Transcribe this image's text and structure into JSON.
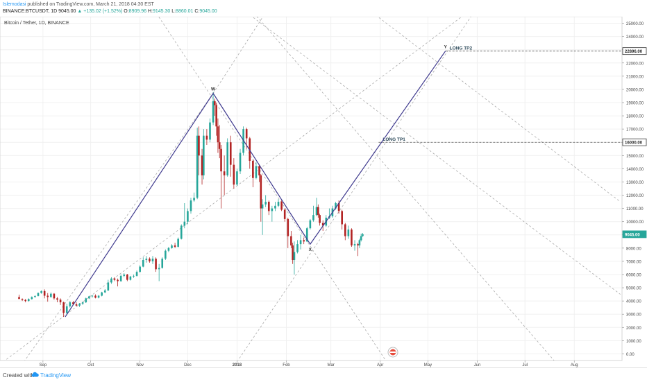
{
  "header": {
    "author": "Islemodasi",
    "published_text": " published on TradingView.com, March 21, 2018 04:30 EST",
    "symbol": "BINANCE:BTCUSDT, 1D",
    "last": "9045.00",
    "change": "▲ +135.02 (+1.52%)",
    "o_label": "O:",
    "o_value": "8909.96",
    "h_label": "H:",
    "h_value": "9145.30",
    "l_label": "L:",
    "l_value": "8860.01",
    "c_label": "C:",
    "c_value": "9045.00"
  },
  "footer": {
    "created_with": "Created with",
    "brand": "TradingView"
  },
  "colors": {
    "up": "#26a69a",
    "down": "#b22222",
    "pattern": "#3f3a8e",
    "price_tag": "#26a69a"
  },
  "chart_data": {
    "type": "candlestick",
    "title": "Bitcoin / Tether, 1D, BINANCE",
    "x_axis": {
      "range": [
        "2017-08-05",
        "2018-08-31"
      ],
      "ticks": [
        {
          "label": "Sep",
          "date": "2017-09-01"
        },
        {
          "label": "Oct",
          "date": "2017-10-01"
        },
        {
          "label": "Nov",
          "date": "2017-11-01"
        },
        {
          "label": "Dec",
          "date": "2017-12-01"
        },
        {
          "label": "2018",
          "date": "2018-01-01"
        },
        {
          "label": "Feb",
          "date": "2018-02-01"
        },
        {
          "label": "Mar",
          "date": "2018-03-01"
        },
        {
          "label": "Apr",
          "date": "2018-04-01"
        },
        {
          "label": "May",
          "date": "2018-05-01"
        },
        {
          "label": "Jun",
          "date": "2018-06-01"
        },
        {
          "label": "Jul",
          "date": "2018-07-01"
        },
        {
          "label": "Aug",
          "date": "2018-08-01"
        }
      ]
    },
    "y_axis": {
      "range": [
        -500,
        25500
      ],
      "ticks": [
        "0.00",
        "1000.00",
        "2000.00",
        "3000.00",
        "4000.00",
        "5000.00",
        "6000.00",
        "7000.00",
        "8000.00",
        "9000.00",
        "10000.00",
        "11000.00",
        "12000.00",
        "13000.00",
        "14000.00",
        "15000.00",
        "16000.00",
        "17000.00",
        "18000.00",
        "19000.00",
        "20000.00",
        "21000.00",
        "22000.00",
        "23000.00",
        "24000.00",
        "25000.00"
      ]
    },
    "price_tags": [
      {
        "label": "22896.00",
        "value": 22896,
        "style": "dark"
      },
      {
        "label": "16000.00",
        "value": 16000,
        "style": "dark"
      },
      {
        "label": "9045.00",
        "value": 9045,
        "style": "green"
      }
    ],
    "horizontal_levels": [
      {
        "label": "LONG TP2",
        "value": 22896,
        "from": "2018-05-12"
      },
      {
        "label": "LONG TP1",
        "value": 16000,
        "from": "2018-03-31"
      }
    ],
    "pattern_points": [
      {
        "label": "",
        "date": "2017-09-15",
        "value": 2800
      },
      {
        "label": "W",
        "date": "2017-12-17",
        "value": 19700
      },
      {
        "label": "X",
        "date": "2018-02-16",
        "value": 8300
      },
      {
        "label": "Y",
        "date": "2018-05-12",
        "value": 22896
      }
    ],
    "guide_lines": [
      {
        "from": {
          "date": "2017-08-07",
          "value": -600
        },
        "to": {
          "date": "2018-05-30",
          "value": 26200
        }
      },
      {
        "from": {
          "date": "2017-11-10",
          "value": 26000
        },
        "to": {
          "date": "2018-04-05",
          "value": -600
        }
      },
      {
        "from": {
          "date": "2017-08-20",
          "value": -600
        },
        "to": {
          "date": "2017-12-17",
          "value": 19700
        }
      },
      {
        "from": {
          "date": "2017-12-17",
          "value": 19700
        },
        "to": {
          "date": "2018-01-20",
          "value": 26000
        }
      },
      {
        "from": {
          "date": "2018-01-01",
          "value": -600
        },
        "to": {
          "date": "2018-06-01",
          "value": 26200
        }
      },
      {
        "from": {
          "date": "2018-01-05",
          "value": 26000
        },
        "to": {
          "date": "2018-08-30",
          "value": 4500
        }
      },
      {
        "from": {
          "date": "2018-03-25",
          "value": 26000
        },
        "to": {
          "date": "2018-08-30",
          "value": 11500
        }
      },
      {
        "from": {
          "date": "2018-01-10",
          "value": 26000
        },
        "to": {
          "date": "2018-07-20",
          "value": -600
        }
      }
    ],
    "candles": [
      [
        "2017-08-17",
        4300,
        4480,
        4200,
        4150
      ],
      [
        "2017-08-19",
        4150,
        4200,
        4000,
        4080
      ],
      [
        "2017-08-21",
        4080,
        4150,
        3900,
        4000
      ],
      [
        "2017-08-23",
        4000,
        4200,
        3950,
        4150
      ],
      [
        "2017-08-25",
        4150,
        4350,
        4100,
        4300
      ],
      [
        "2017-08-27",
        4300,
        4420,
        4250,
        4380
      ],
      [
        "2017-08-29",
        4380,
        4650,
        4350,
        4600
      ],
      [
        "2017-08-31",
        4600,
        4800,
        4550,
        4750
      ],
      [
        "2017-09-02",
        4750,
        4880,
        4200,
        4400
      ],
      [
        "2017-09-04",
        4400,
        4600,
        3950,
        4300
      ],
      [
        "2017-09-06",
        4300,
        4650,
        4250,
        4550
      ],
      [
        "2017-09-08",
        4550,
        4600,
        4100,
        4200
      ],
      [
        "2017-09-10",
        4200,
        4300,
        3900,
        4100
      ],
      [
        "2017-09-12",
        4100,
        4200,
        3700,
        3900
      ],
      [
        "2017-09-14",
        3900,
        3950,
        2800,
        3100
      ],
      [
        "2017-09-16",
        3100,
        3800,
        3000,
        3600
      ],
      [
        "2017-09-18",
        3600,
        4000,
        3500,
        3900
      ],
      [
        "2017-09-20",
        3900,
        4000,
        3700,
        3750
      ],
      [
        "2017-09-22",
        3750,
        3900,
        3600,
        3650
      ],
      [
        "2017-09-24",
        3650,
        3850,
        3550,
        3800
      ],
      [
        "2017-09-26",
        3800,
        3950,
        3700,
        3900
      ],
      [
        "2017-09-28",
        3900,
        4250,
        3850,
        4200
      ],
      [
        "2017-09-30",
        4200,
        4400,
        4150,
        4350
      ],
      [
        "2017-10-02",
        4350,
        4450,
        4250,
        4400
      ],
      [
        "2017-10-04",
        4400,
        4500,
        4200,
        4250
      ],
      [
        "2017-10-06",
        4250,
        4450,
        4200,
        4400
      ],
      [
        "2017-10-08",
        4400,
        4700,
        4350,
        4650
      ],
      [
        "2017-10-10",
        4650,
        4900,
        4600,
        4800
      ],
      [
        "2017-10-12",
        4800,
        5600,
        4750,
        5400
      ],
      [
        "2017-10-14",
        5400,
        5800,
        5300,
        5700
      ],
      [
        "2017-10-16",
        5700,
        5800,
        5500,
        5600
      ],
      [
        "2017-10-18",
        5600,
        5700,
        5100,
        5500
      ],
      [
        "2017-10-20",
        5500,
        6000,
        5450,
        5900
      ],
      [
        "2017-10-22",
        5900,
        6100,
        5800,
        6000
      ],
      [
        "2017-10-24",
        6000,
        6050,
        5500,
        5600
      ],
      [
        "2017-10-26",
        5600,
        5900,
        5550,
        5850
      ],
      [
        "2017-10-28",
        5850,
        6000,
        5750,
        5900
      ],
      [
        "2017-10-30",
        5900,
        6300,
        5850,
        6200
      ],
      [
        "2017-11-01",
        6200,
        6700,
        6150,
        6600
      ],
      [
        "2017-11-03",
        6600,
        7300,
        6550,
        7100
      ],
      [
        "2017-11-05",
        7100,
        7400,
        6900,
        7200
      ],
      [
        "2017-11-07",
        7200,
        7300,
        6900,
        7000
      ],
      [
        "2017-11-09",
        7000,
        7400,
        6800,
        7200
      ],
      [
        "2017-11-11",
        7200,
        7300,
        6200,
        6400
      ],
      [
        "2017-11-13",
        6400,
        6800,
        5500,
        6500
      ],
      [
        "2017-11-15",
        6500,
        7300,
        6450,
        7200
      ],
      [
        "2017-11-17",
        7200,
        7900,
        7100,
        7800
      ],
      [
        "2017-11-19",
        7800,
        8100,
        7700,
        8000
      ],
      [
        "2017-11-21",
        8000,
        8300,
        7950,
        8200
      ],
      [
        "2017-11-23",
        8200,
        8400,
        8000,
        8100
      ],
      [
        "2017-11-25",
        8100,
        8800,
        8050,
        8700
      ],
      [
        "2017-11-27",
        8700,
        9800,
        8650,
        9700
      ],
      [
        "2017-11-29",
        9700,
        11400,
        9500,
        10000
      ],
      [
        "2017-12-01",
        10000,
        11000,
        9800,
        10800
      ],
      [
        "2017-12-03",
        10800,
        11800,
        10600,
        11600
      ],
      [
        "2017-12-05",
        11600,
        12200,
        11500,
        11800
      ],
      [
        "2017-12-07",
        11800,
        17100,
        11700,
        16500
      ],
      [
        "2017-12-08",
        16500,
        17200,
        13500,
        15000
      ],
      [
        "2017-12-10",
        15000,
        15500,
        12800,
        13500
      ],
      [
        "2017-12-11",
        13500,
        17000,
        13200,
        16500
      ],
      [
        "2017-12-13",
        16500,
        17000,
        15800,
        16200
      ],
      [
        "2017-12-15",
        16200,
        17800,
        16000,
        17500
      ],
      [
        "2017-12-17",
        17500,
        19800,
        17300,
        19100
      ],
      [
        "2017-12-18",
        19100,
        19300,
        18000,
        18800
      ],
      [
        "2017-12-19",
        18800,
        19000,
        16500,
        17200
      ],
      [
        "2017-12-20",
        17200,
        17800,
        15200,
        16000
      ],
      [
        "2017-12-21",
        16000,
        17300,
        14800,
        15500
      ],
      [
        "2017-12-22",
        15500,
        15800,
        11000,
        13800
      ],
      [
        "2017-12-24",
        13800,
        15000,
        12000,
        13500
      ],
      [
        "2017-12-26",
        13500,
        16300,
        13400,
        16000
      ],
      [
        "2017-12-28",
        16000,
        16500,
        13400,
        14300
      ],
      [
        "2017-12-30",
        14300,
        14800,
        12500,
        12800
      ],
      [
        "2018-01-01",
        12800,
        14000,
        12700,
        13800
      ],
      [
        "2018-01-03",
        13800,
        15500,
        13600,
        15200
      ],
      [
        "2018-01-05",
        15200,
        17200,
        15000,
        17000
      ],
      [
        "2018-01-07",
        17000,
        17100,
        15500,
        16300
      ],
      [
        "2018-01-09",
        16300,
        16400,
        14000,
        14600
      ],
      [
        "2018-01-11",
        14600,
        14700,
        12600,
        13300
      ],
      [
        "2018-01-13",
        13300,
        14500,
        13200,
        14200
      ],
      [
        "2018-01-15",
        14200,
        14300,
        13000,
        13500
      ],
      [
        "2018-01-16",
        13500,
        13600,
        10000,
        11000
      ],
      [
        "2018-01-17",
        11000,
        11700,
        9000,
        11300
      ],
      [
        "2018-01-19",
        11300,
        12000,
        11100,
        11500
      ],
      [
        "2018-01-21",
        11500,
        11600,
        10500,
        10800
      ],
      [
        "2018-01-23",
        10800,
        11200,
        10000,
        11000
      ],
      [
        "2018-01-25",
        11000,
        11500,
        10800,
        11200
      ],
      [
        "2018-01-27",
        11200,
        11700,
        11100,
        11500
      ],
      [
        "2018-01-29",
        11500,
        11600,
        10800,
        10900
      ],
      [
        "2018-01-31",
        10900,
        11000,
        10000,
        10200
      ],
      [
        "2018-02-02",
        10200,
        10300,
        8000,
        8900
      ],
      [
        "2018-02-04",
        8900,
        9300,
        8000,
        8200
      ],
      [
        "2018-02-05",
        8200,
        8400,
        6800,
        7100
      ],
      [
        "2018-02-06",
        7100,
        8500,
        6000,
        7700
      ],
      [
        "2018-02-08",
        7700,
        8600,
        7600,
        8300
      ],
      [
        "2018-02-10",
        8300,
        9000,
        7900,
        8600
      ],
      [
        "2018-02-12",
        8600,
        8800,
        8300,
        8500
      ],
      [
        "2018-02-14",
        8500,
        9600,
        8450,
        9500
      ],
      [
        "2018-02-16",
        9500,
        10200,
        9400,
        10100
      ],
      [
        "2018-02-18",
        10100,
        11200,
        10000,
        10500
      ],
      [
        "2018-02-20",
        10500,
        11800,
        10400,
        11100
      ],
      [
        "2018-02-21",
        11100,
        11300,
        10300,
        10500
      ],
      [
        "2018-02-22",
        10500,
        10600,
        9700,
        9900
      ],
      [
        "2018-02-24",
        9900,
        10100,
        9300,
        9700
      ],
      [
        "2018-02-26",
        9700,
        10500,
        9600,
        10300
      ],
      [
        "2018-02-28",
        10300,
        11000,
        10200,
        10400
      ],
      [
        "2018-03-02",
        10400,
        11200,
        10300,
        11000
      ],
      [
        "2018-03-04",
        11000,
        11500,
        10900,
        11400
      ],
      [
        "2018-03-06",
        11400,
        11600,
        10600,
        10800
      ],
      [
        "2018-03-08",
        10800,
        10900,
        9400,
        9800
      ],
      [
        "2018-03-10",
        9800,
        9900,
        8600,
        8900
      ],
      [
        "2018-03-12",
        8900,
        9700,
        8700,
        9400
      ],
      [
        "2018-03-14",
        9400,
        9500,
        8100,
        8200
      ],
      [
        "2018-03-16",
        8200,
        8600,
        7800,
        8300
      ],
      [
        "2018-03-18",
        8300,
        8400,
        7400,
        8200
      ],
      [
        "2018-03-19",
        8200,
        8700,
        8000,
        8600
      ],
      [
        "2018-03-20",
        8600,
        9100,
        8500,
        8910
      ],
      [
        "2018-03-21",
        8910,
        9145,
        8860,
        9045
      ]
    ]
  }
}
